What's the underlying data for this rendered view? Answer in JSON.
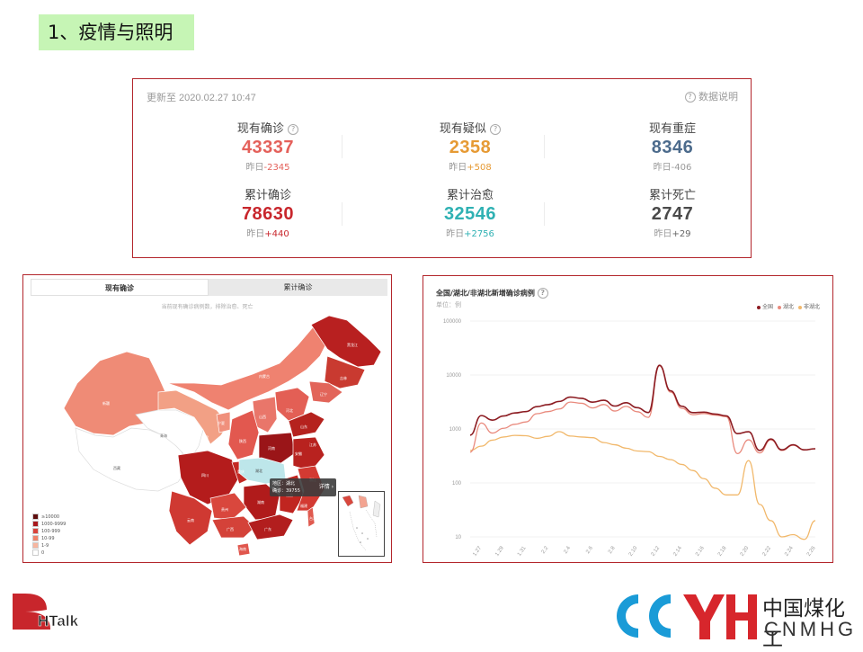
{
  "heading": "1、疫情与照明",
  "stats": {
    "updated": "更新至 2020.02.27 10:47",
    "help": "数据说明",
    "items": [
      {
        "label": "现有确诊",
        "value": "43337",
        "delta_prefix": "昨日",
        "delta": "-2345",
        "color": "#e4605a",
        "delta_color": "#e4605a",
        "has_help": true
      },
      {
        "label": "现有疑似",
        "value": "2358",
        "delta_prefix": "昨日",
        "delta": "+508",
        "color": "#e69a34",
        "delta_color": "#e69a34",
        "has_help": true
      },
      {
        "label": "现有重症",
        "value": "8346",
        "delta_prefix": "昨日",
        "delta": "-406",
        "color": "#4c6b8c",
        "delta_color": "#999999",
        "has_help": false
      },
      {
        "label": "累计确诊",
        "value": "78630",
        "delta_prefix": "昨日",
        "delta": "+440",
        "color": "#c8262c",
        "delta_color": "#c8262c",
        "has_help": false
      },
      {
        "label": "累计治愈",
        "value": "32546",
        "delta_prefix": "昨日",
        "delta": "+2756",
        "color": "#2fb1b3",
        "delta_color": "#2fb1b3",
        "has_help": false
      },
      {
        "label": "累计死亡",
        "value": "2747",
        "delta_prefix": "昨日",
        "delta": "+29",
        "color": "#4a4a4a",
        "delta_color": "#666666",
        "has_help": false
      }
    ]
  },
  "map": {
    "tabs": [
      "现有确诊",
      "累计确诊"
    ],
    "subtitle": "当前现有确诊病例数，排除治愈、死亡",
    "legend": [
      "≥10000",
      "1000-9999",
      "100-999",
      "10-99",
      "1-9",
      "0"
    ],
    "legend_colors": [
      "#5e0d0d",
      "#a8191d",
      "#d9443c",
      "#f0836a",
      "#f7b59f",
      "#ffffff"
    ],
    "tooltip_region": "地区：湖北",
    "tooltip_value": "确诊：39755",
    "tooltip_detail": "详情 ›",
    "province_labels": [
      "新疆",
      "西藏",
      "青海",
      "甘肃",
      "内蒙古",
      "黑龙江",
      "吉林",
      "辽宁",
      "河北",
      "山东",
      "河南",
      "湖北",
      "四川",
      "云南",
      "广西",
      "广东",
      "湖南",
      "江西",
      "浙江",
      "台湾",
      "海南",
      "陕西",
      "山西",
      "宁夏",
      "贵州",
      "重庆",
      "安徽",
      "江苏",
      "福建",
      "澳门"
    ]
  },
  "chart": {
    "title": "全国/湖北/非湖北新增确诊病例",
    "unit": "单位：例",
    "legend": [
      {
        "name": "全国",
        "color": "#8c1c22"
      },
      {
        "name": "湖北",
        "color": "#e98a7d"
      },
      {
        "name": "非湖北",
        "color": "#f1b86b"
      }
    ]
  },
  "chart_data": {
    "type": "line",
    "title": "全国/湖北/非湖北新增确诊病例",
    "ylabel": "单位：例",
    "yscale": "log",
    "ylim": [
      10,
      100000
    ],
    "yticks": [
      "10",
      "100",
      "1000",
      "10000",
      "100000"
    ],
    "xticks": [
      "1.27",
      "1.29",
      "1.31",
      "2.2",
      "2.4",
      "2.6",
      "2.8",
      "2.10",
      "2.12",
      "2.14",
      "2.16",
      "2.18",
      "2.20",
      "2.22",
      "2.24",
      "2.26"
    ],
    "x": [
      "1.26",
      "1.27",
      "1.28",
      "1.29",
      "1.30",
      "1.31",
      "2.1",
      "2.2",
      "2.3",
      "2.4",
      "2.5",
      "2.6",
      "2.7",
      "2.8",
      "2.9",
      "2.10",
      "2.11",
      "2.12",
      "2.13",
      "2.14",
      "2.15",
      "2.16",
      "2.17",
      "2.18",
      "2.19",
      "2.20",
      "2.21",
      "2.22",
      "2.23",
      "2.24",
      "2.25",
      "2.26"
    ],
    "series": [
      {
        "name": "全国",
        "values": [
          770,
          1770,
          1460,
          1740,
          1980,
          2100,
          2590,
          2830,
          3240,
          3890,
          3700,
          3140,
          3400,
          2660,
          3060,
          2480,
          2020,
          15150,
          5090,
          2640,
          2010,
          2050,
          1890,
          1750,
          820,
          890,
          400,
          650,
          410,
          510,
          410,
          430
        ]
      },
      {
        "name": "湖北",
        "values": [
          370,
          1290,
          840,
          1030,
          1220,
          1350,
          1920,
          2100,
          2350,
          3150,
          2990,
          2450,
          2840,
          2150,
          2620,
          2090,
          1640,
          14840,
          4820,
          2420,
          1840,
          1930,
          1810,
          1690,
          350,
          630,
          360,
          630,
          400,
          500,
          410,
          430
        ]
      },
      {
        "name": "非湖北",
        "values": [
          400,
          480,
          620,
          710,
          760,
          750,
          670,
          730,
          890,
          740,
          710,
          690,
          560,
          510,
          440,
          390,
          380,
          310,
          270,
          220,
          170,
          120,
          80,
          60,
          60,
          260,
          40,
          20,
          10,
          11,
          9,
          20
        ]
      }
    ]
  },
  "footer": {
    "left_logo": "HTalk",
    "cn": "中国煤化工",
    "en": "CNMHG"
  }
}
